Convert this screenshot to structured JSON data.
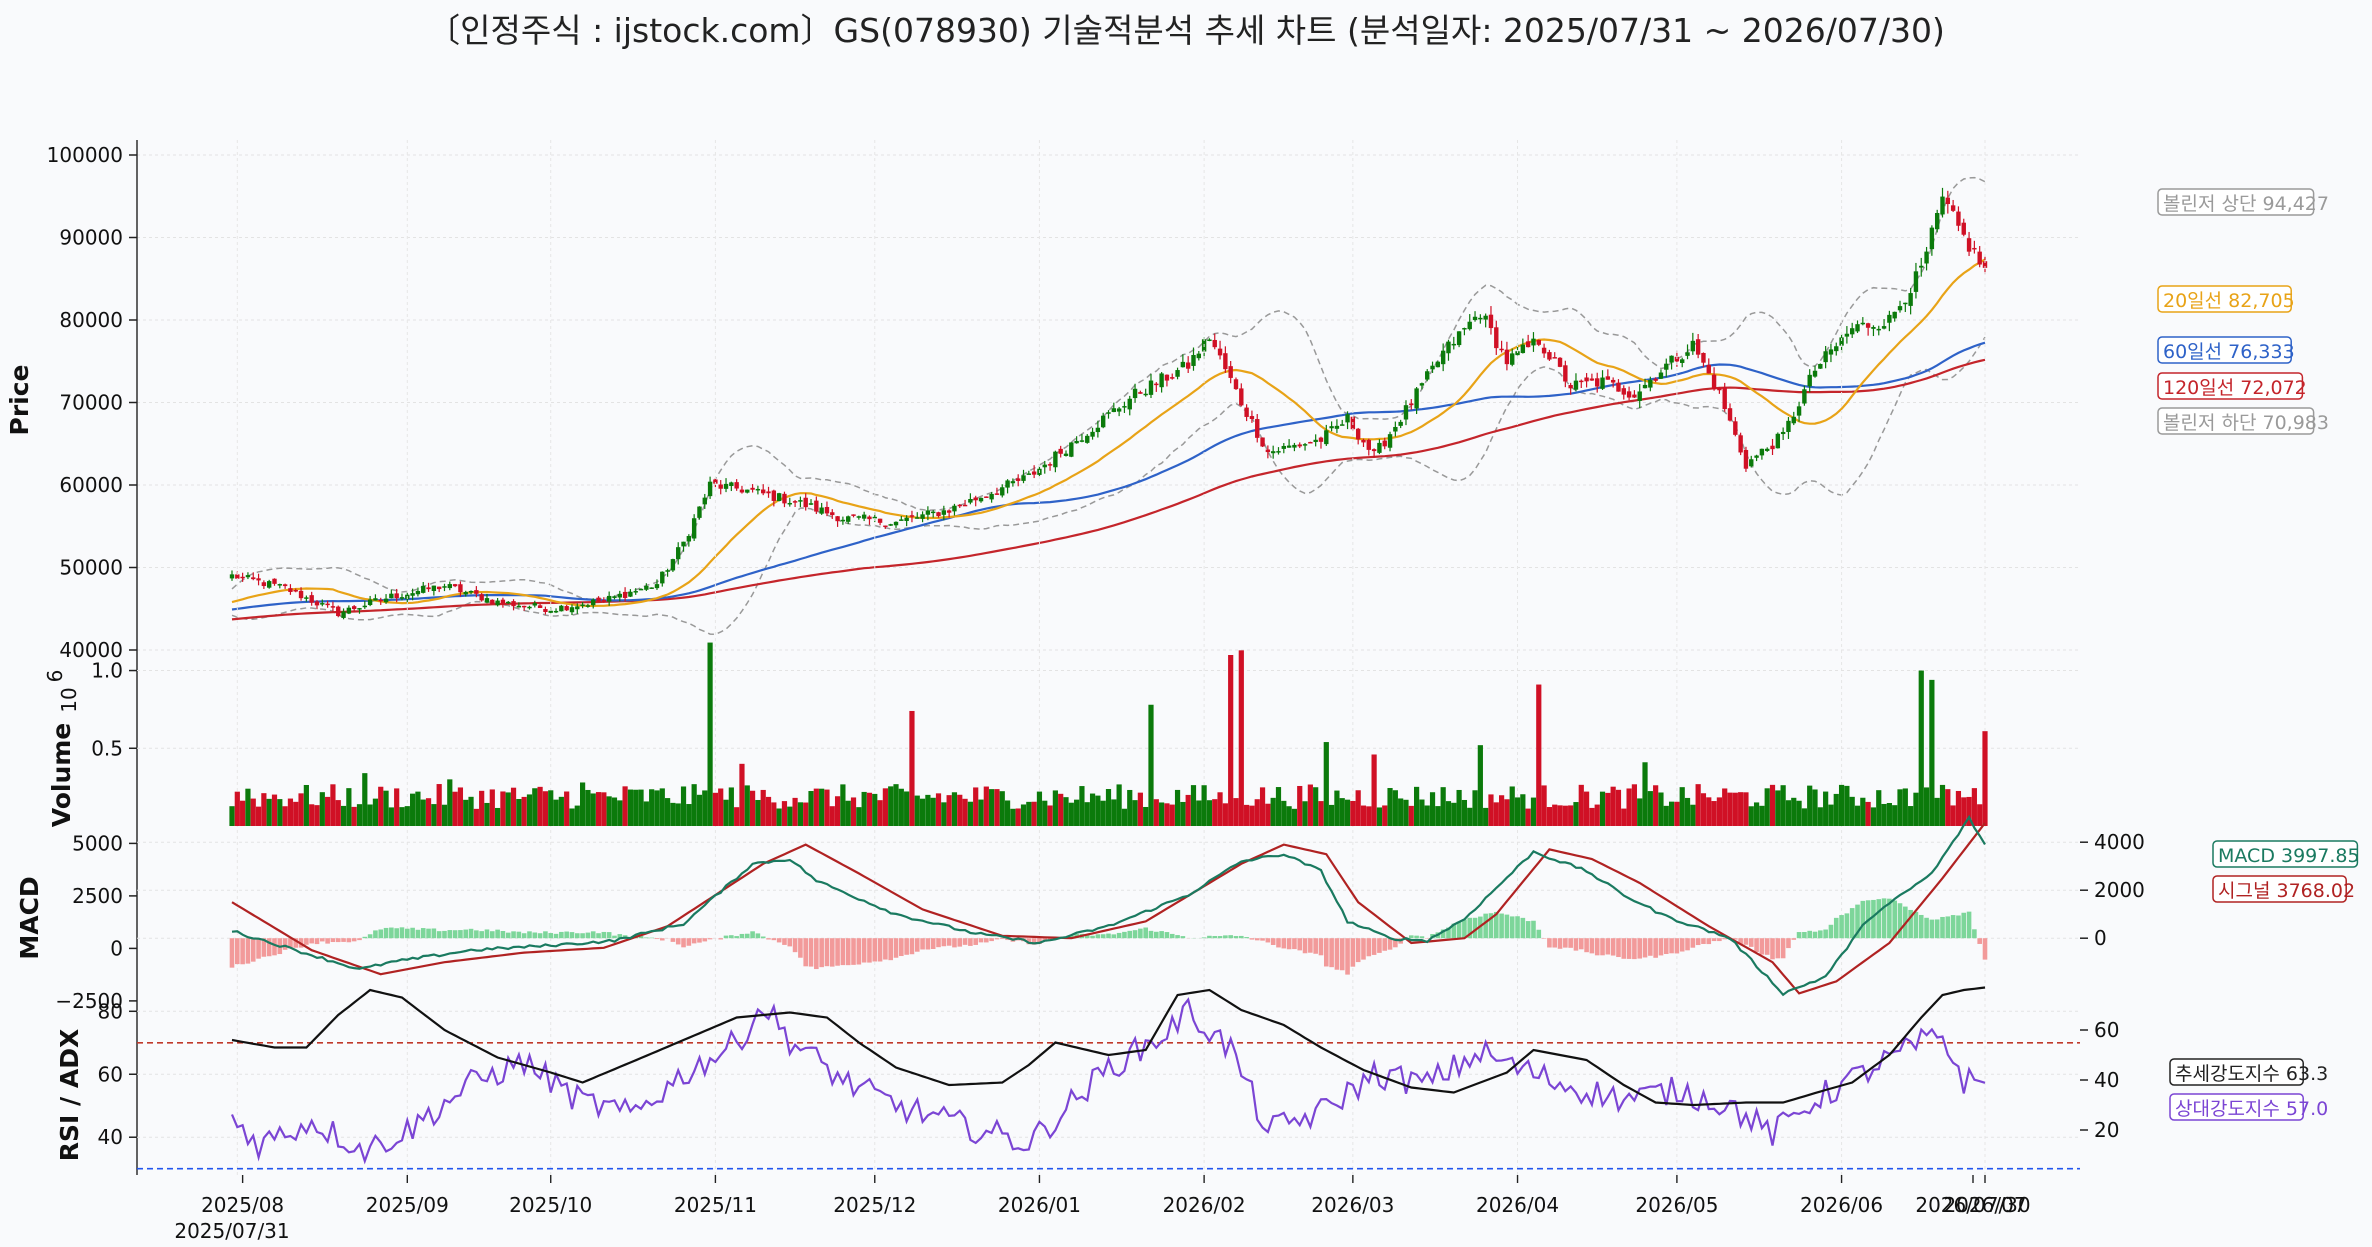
{
  "title": "〔인정주식 : ijstock.com〕GS(078930) 기술적분석 추세 차트 (분석일자: 2025/07/31 ~ 2026/07/30)",
  "colors": {
    "up": "#0b7a0b",
    "down": "#d01025",
    "ma20": "#e8a317",
    "ma60": "#2e62c8",
    "ma120": "#c4252b",
    "bollinger": "#999999",
    "macd": "#1a7a60",
    "signal": "#b02222",
    "hist_up": "#7dd69a",
    "hist_down": "#f29a9a",
    "rsi": "#7b45d4",
    "adx": "#111111",
    "ref_high": "#c0392b",
    "ref_low": "#2255ee"
  },
  "chart_data": [
    {
      "type": "candlestick",
      "ylabel": "Price",
      "ylim": [
        40000,
        100000
      ],
      "yticks": [
        "40000",
        "50000",
        "60000",
        "70000",
        "80000",
        "90000",
        "100000"
      ],
      "x_range": [
        "2025/07/31",
        "2026/07/30"
      ],
      "xtick_labels": [
        "2025/08",
        "2025/09",
        "2025/10",
        "2025/11",
        "2025/12",
        "2026/01",
        "2026/02",
        "2026/03",
        "2026/04",
        "2026/05",
        "2026/06",
        "2026/07",
        "2026/07/30"
      ],
      "xtick_sublabel": "2025/07/31",
      "close_anchors": [
        [
          0,
          49000
        ],
        [
          10,
          47500
        ],
        [
          20,
          44500
        ],
        [
          30,
          46500
        ],
        [
          40,
          47800
        ],
        [
          50,
          45800
        ],
        [
          60,
          45000
        ],
        [
          70,
          46000
        ],
        [
          80,
          48000
        ],
        [
          85,
          53000
        ],
        [
          90,
          60000
        ],
        [
          96,
          59500
        ],
        [
          106,
          58000
        ],
        [
          115,
          56000
        ],
        [
          125,
          55500
        ],
        [
          135,
          57000
        ],
        [
          150,
          61000
        ],
        [
          160,
          66000
        ],
        [
          170,
          71000
        ],
        [
          180,
          74500
        ],
        [
          184,
          78000
        ],
        [
          190,
          70000
        ],
        [
          195,
          64000
        ],
        [
          205,
          65500
        ],
        [
          210,
          68000
        ],
        [
          215,
          63500
        ],
        [
          222,
          70000
        ],
        [
          228,
          76000
        ],
        [
          235,
          81000
        ],
        [
          240,
          75000
        ],
        [
          246,
          77500
        ],
        [
          252,
          72000
        ],
        [
          258,
          72500
        ],
        [
          264,
          71000
        ],
        [
          270,
          74500
        ],
        [
          275,
          77000
        ],
        [
          280,
          71000
        ],
        [
          285,
          62500
        ],
        [
          292,
          66000
        ],
        [
          298,
          74000
        ],
        [
          305,
          79000
        ],
        [
          312,
          80000
        ],
        [
          318,
          86000
        ],
        [
          322,
          94500
        ],
        [
          326,
          90000
        ],
        [
          330,
          86000
        ]
      ],
      "series": [
        {
          "name": "20일선",
          "last": 82705,
          "tag": "20일선 82,705"
        },
        {
          "name": "60일선",
          "last": 76333,
          "tag": "60일선 76,333"
        },
        {
          "name": "120일선",
          "last": 72072,
          "tag": "120일선 72,072"
        },
        {
          "name": "볼린저 상단",
          "last": 94427,
          "tag": "볼린저 상단 94,427"
        },
        {
          "name": "볼린저 하단",
          "last": 70983,
          "tag": "볼린저 하단 70,983"
        }
      ]
    },
    {
      "type": "bar",
      "ylabel": "Volume",
      "ylim": [
        0,
        1100000
      ],
      "yticks": [
        "0.5",
        "1.0"
      ],
      "exponent_label": "10",
      "exponent_power": "6",
      "spikes": [
        [
          3,
          0.24
        ],
        [
          25,
          0.34
        ],
        [
          41,
          0.3
        ],
        [
          66,
          0.28
        ],
        [
          90,
          1.18
        ],
        [
          96,
          0.4
        ],
        [
          128,
          0.74
        ],
        [
          173,
          0.78
        ],
        [
          188,
          1.1
        ],
        [
          190,
          1.13
        ],
        [
          206,
          0.54
        ],
        [
          215,
          0.46
        ],
        [
          235,
          0.52
        ],
        [
          246,
          0.91
        ],
        [
          266,
          0.41
        ],
        [
          318,
          1.0
        ],
        [
          320,
          0.94
        ],
        [
          330,
          0.61
        ]
      ]
    },
    {
      "type": "line",
      "ylabel": "MACD",
      "ylim": [
        -2700,
        4300
      ],
      "yticks_left": [
        "−2500",
        "0",
        "2500",
        "5000"
      ],
      "yticks_right": [
        "0",
        "2000",
        "4000"
      ],
      "macd_anchors": [
        [
          0,
          300
        ],
        [
          15,
          -700
        ],
        [
          24,
          -1300
        ],
        [
          30,
          -1000
        ],
        [
          45,
          -500
        ],
        [
          60,
          -300
        ],
        [
          72,
          -100
        ],
        [
          85,
          600
        ],
        [
          98,
          3100
        ],
        [
          105,
          3300
        ],
        [
          110,
          2400
        ],
        [
          125,
          1000
        ],
        [
          140,
          200
        ],
        [
          152,
          -200
        ],
        [
          165,
          500
        ],
        [
          180,
          1800
        ],
        [
          190,
          3200
        ],
        [
          198,
          3500
        ],
        [
          205,
          2800
        ],
        [
          210,
          700
        ],
        [
          218,
          0
        ],
        [
          225,
          -100
        ],
        [
          232,
          800
        ],
        [
          245,
          3600
        ],
        [
          255,
          2800
        ],
        [
          262,
          1800
        ],
        [
          270,
          900
        ],
        [
          282,
          0
        ],
        [
          292,
          -2300
        ],
        [
          300,
          -1600
        ],
        [
          308,
          800
        ],
        [
          320,
          2700
        ],
        [
          327,
          5000
        ],
        [
          330,
          3900
        ]
      ],
      "signal_anchors": [
        [
          0,
          1500
        ],
        [
          15,
          -500
        ],
        [
          28,
          -1500
        ],
        [
          40,
          -1000
        ],
        [
          55,
          -600
        ],
        [
          70,
          -400
        ],
        [
          82,
          500
        ],
        [
          100,
          3100
        ],
        [
          108,
          3900
        ],
        [
          118,
          2700
        ],
        [
          130,
          1200
        ],
        [
          145,
          100
        ],
        [
          158,
          0
        ],
        [
          172,
          700
        ],
        [
          190,
          3100
        ],
        [
          198,
          3900
        ],
        [
          206,
          3500
        ],
        [
          212,
          1500
        ],
        [
          222,
          -200
        ],
        [
          232,
          0
        ],
        [
          238,
          1000
        ],
        [
          248,
          3700
        ],
        [
          256,
          3300
        ],
        [
          265,
          2300
        ],
        [
          278,
          500
        ],
        [
          290,
          -1000
        ],
        [
          295,
          -2300
        ],
        [
          302,
          -1800
        ],
        [
          312,
          -200
        ],
        [
          322,
          2500
        ],
        [
          330,
          4800
        ]
      ],
      "series": [
        {
          "name": "MACD",
          "last": 3997.85,
          "tag": "MACD 3997.85"
        },
        {
          "name": "시그널",
          "last": 3768.02,
          "tag": "시그널 3768.02"
        }
      ]
    },
    {
      "type": "line",
      "ylabel": "RSI / ADX",
      "ylim": [
        28,
        82
      ],
      "yticks_left": [
        "40",
        "60",
        "80"
      ],
      "yticks_right": [
        "20",
        "40",
        "60"
      ],
      "ref_lines": [
        70,
        30
      ],
      "rsi_anchors": [
        [
          0,
          46
        ],
        [
          5,
          38
        ],
        [
          15,
          45
        ],
        [
          25,
          36
        ],
        [
          33,
          42
        ],
        [
          45,
          57
        ],
        [
          55,
          64
        ],
        [
          65,
          52
        ],
        [
          75,
          47
        ],
        [
          85,
          60
        ],
        [
          95,
          70
        ],
        [
          100,
          82
        ],
        [
          105,
          71
        ],
        [
          115,
          58
        ],
        [
          125,
          50
        ],
        [
          135,
          45
        ],
        [
          150,
          38
        ],
        [
          165,
          62
        ],
        [
          175,
          72
        ],
        [
          180,
          80
        ],
        [
          188,
          68
        ],
        [
          195,
          42
        ],
        [
          205,
          48
        ],
        [
          215,
          60
        ],
        [
          225,
          57
        ],
        [
          235,
          67
        ],
        [
          242,
          62
        ],
        [
          252,
          56
        ],
        [
          262,
          52
        ],
        [
          272,
          55
        ],
        [
          282,
          50
        ],
        [
          290,
          41
        ],
        [
          298,
          52
        ],
        [
          310,
          63
        ],
        [
          318,
          70
        ],
        [
          322,
          72
        ],
        [
          326,
          58
        ],
        [
          330,
          57
        ]
      ],
      "adx_anchors": [
        [
          0,
          56
        ],
        [
          8,
          53
        ],
        [
          14,
          53
        ],
        [
          20,
          66
        ],
        [
          26,
          76
        ],
        [
          32,
          73
        ],
        [
          40,
          60
        ],
        [
          50,
          49
        ],
        [
          60,
          43
        ],
        [
          66,
          39
        ],
        [
          75,
          47
        ],
        [
          85,
          56
        ],
        [
          95,
          65
        ],
        [
          105,
          67
        ],
        [
          112,
          65
        ],
        [
          118,
          55
        ],
        [
          125,
          45
        ],
        [
          135,
          38
        ],
        [
          145,
          39
        ],
        [
          150,
          46
        ],
        [
          155,
          55
        ],
        [
          165,
          50
        ],
        [
          172,
          52
        ],
        [
          178,
          74
        ],
        [
          184,
          76
        ],
        [
          190,
          68
        ],
        [
          198,
          62
        ],
        [
          205,
          53
        ],
        [
          213,
          44
        ],
        [
          222,
          37
        ],
        [
          230,
          35
        ],
        [
          240,
          43
        ],
        [
          245,
          52
        ],
        [
          255,
          48
        ],
        [
          262,
          38
        ],
        [
          268,
          31
        ],
        [
          275,
          30
        ],
        [
          285,
          31
        ],
        [
          292,
          31
        ],
        [
          300,
          36
        ],
        [
          305,
          39
        ],
        [
          312,
          50
        ],
        [
          318,
          65
        ],
        [
          322,
          74
        ],
        [
          326,
          76
        ],
        [
          330,
          77
        ]
      ],
      "series": [
        {
          "name": "추세강도지수",
          "last": 63.3,
          "tag": "추세강도지수 63.3"
        },
        {
          "name": "상대강도지수",
          "last": 57.0,
          "tag": "상대강도지수 57.0"
        }
      ]
    }
  ]
}
